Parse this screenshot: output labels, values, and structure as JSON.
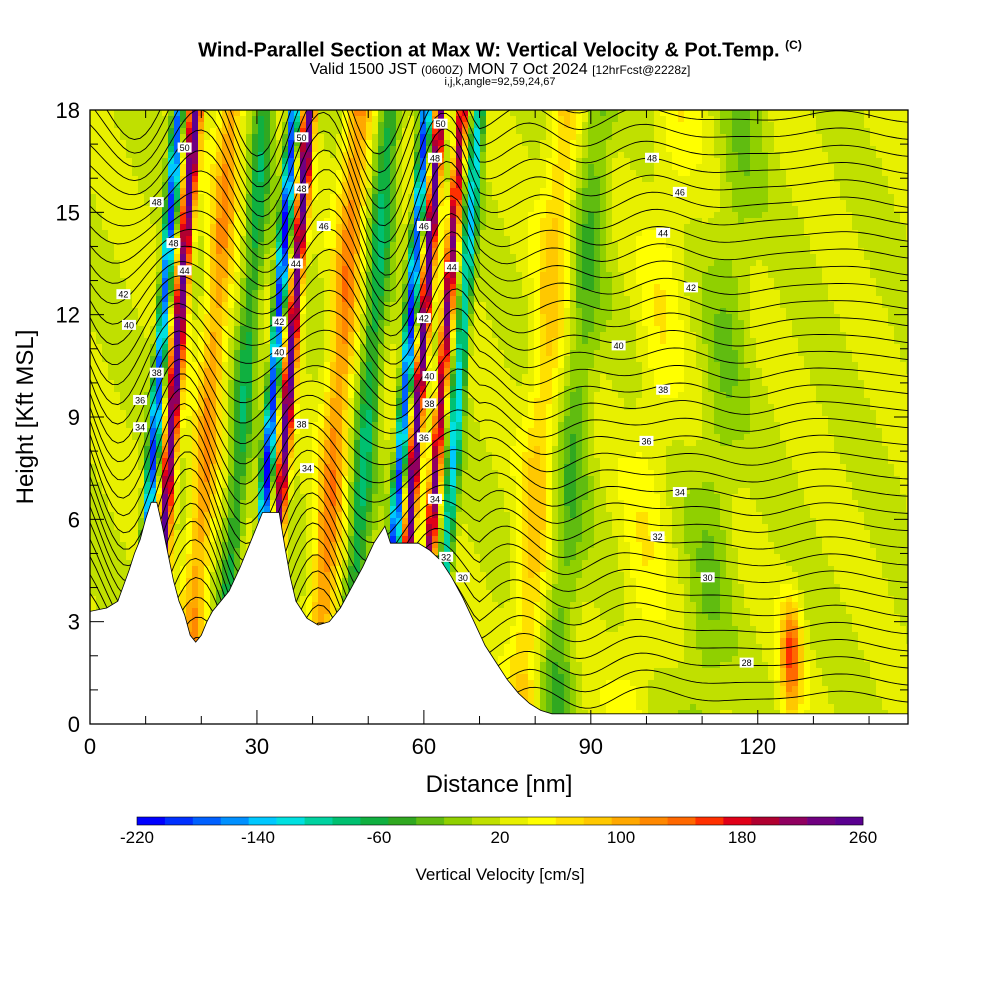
{
  "header": {
    "title": "Wind-Parallel Section at Max W: Vertical Velocity & Pot.Temp.",
    "title_suffix": "(C)",
    "valid_a": "Valid 1500 JST",
    "valid_b": "(0600Z)",
    "valid_c": "MON 7 Oct 2024",
    "valid_d": "[12hrFcst@2228z]",
    "params": "i,j,k,angle=92,59,24,67"
  },
  "chart_data": {
    "type": "heatmap",
    "xlabel": "Distance [nm]",
    "ylabel": "Height [Kft MSL]",
    "xlim": [
      0,
      147
    ],
    "ylim": [
      0,
      18
    ],
    "x_ticks": [
      "0",
      "30",
      "60",
      "90",
      "120"
    ],
    "x_tick_values": [
      0,
      30,
      60,
      90,
      120
    ],
    "y_ticks": [
      "0",
      "3",
      "6",
      "9",
      "12",
      "15",
      "18"
    ],
    "y_tick_values": [
      0,
      3,
      6,
      9,
      12,
      15,
      18
    ],
    "colorbar": {
      "label": "Vertical Velocity [cm/s]",
      "range": [
        -220,
        260
      ],
      "tick_labels": [
        "-220",
        "-140",
        "-60",
        "20",
        "100",
        "180",
        "260"
      ],
      "tick_values": [
        -220,
        -140,
        -60,
        20,
        100,
        180,
        260
      ],
      "colors": [
        "#0000ff",
        "#0030ff",
        "#0060ff",
        "#0090ff",
        "#00c8ff",
        "#00e0e0",
        "#00d2a0",
        "#00c070",
        "#10b040",
        "#30a820",
        "#60bc10",
        "#90d000",
        "#c0e000",
        "#e8f000",
        "#ffff00",
        "#ffe000",
        "#ffc800",
        "#ffa800",
        "#ff8800",
        "#ff6800",
        "#ff3000",
        "#e00018",
        "#b00030",
        "#900060",
        "#700080",
        "#5a0090"
      ]
    },
    "terrain": [
      [
        0,
        3.3
      ],
      [
        3,
        3.4
      ],
      [
        5,
        3.6
      ],
      [
        7,
        4.5
      ],
      [
        8,
        5
      ],
      [
        9,
        5.4
      ],
      [
        10,
        6
      ],
      [
        11,
        6.5
      ],
      [
        12,
        6.5
      ],
      [
        13,
        5.8
      ],
      [
        14,
        5
      ],
      [
        15,
        4.2
      ],
      [
        16,
        3.6
      ],
      [
        17,
        3.2
      ],
      [
        18,
        2.6
      ],
      [
        19,
        2.4
      ],
      [
        20,
        2.6
      ],
      [
        21,
        3.0
      ],
      [
        22,
        3.3
      ],
      [
        25,
        3.9
      ],
      [
        27,
        4.6
      ],
      [
        29,
        5.4
      ],
      [
        31,
        6.2
      ],
      [
        34,
        6.2
      ],
      [
        35,
        5.2
      ],
      [
        36,
        4.3
      ],
      [
        37,
        3.6
      ],
      [
        39,
        3.1
      ],
      [
        41,
        2.9
      ],
      [
        43,
        3.0
      ],
      [
        45,
        3.4
      ],
      [
        47,
        4.0
      ],
      [
        49,
        4.6
      ],
      [
        51,
        5.3
      ],
      [
        53,
        5.8
      ],
      [
        54,
        5.3
      ],
      [
        59,
        5.3
      ],
      [
        61,
        5.1
      ],
      [
        63,
        4.8
      ],
      [
        65,
        4.3
      ],
      [
        67,
        3.7
      ],
      [
        69,
        3.0
      ],
      [
        71,
        2.3
      ],
      [
        73,
        1.8
      ],
      [
        75,
        1.3
      ],
      [
        77,
        0.9
      ],
      [
        79,
        0.6
      ],
      [
        81,
        0.4
      ],
      [
        83,
        0.3
      ],
      [
        147,
        0.3
      ]
    ],
    "potential_temperature_contour_labels": [
      {
        "label": "28",
        "x": 118,
        "y": 1.8
      },
      {
        "label": "30",
        "x": 111,
        "y": 4.3
      },
      {
        "label": "30",
        "x": 67,
        "y": 4.3
      },
      {
        "label": "32",
        "x": 102,
        "y": 5.5
      },
      {
        "label": "32",
        "x": 64,
        "y": 4.9
      },
      {
        "label": "34",
        "x": 106,
        "y": 6.8
      },
      {
        "label": "34",
        "x": 62,
        "y": 6.6
      },
      {
        "label": "34",
        "x": 39,
        "y": 7.5
      },
      {
        "label": "34",
        "x": 9,
        "y": 8.7
      },
      {
        "label": "36",
        "x": 100,
        "y": 8.3
      },
      {
        "label": "36",
        "x": 60,
        "y": 8.4
      },
      {
        "label": "36",
        "x": 9,
        "y": 9.5
      },
      {
        "label": "38",
        "x": 103,
        "y": 9.8
      },
      {
        "label": "38",
        "x": 61,
        "y": 9.4
      },
      {
        "label": "38",
        "x": 38,
        "y": 8.8
      },
      {
        "label": "38",
        "x": 12,
        "y": 10.3
      },
      {
        "label": "40",
        "x": 95,
        "y": 11.1
      },
      {
        "label": "40",
        "x": 61,
        "y": 10.2
      },
      {
        "label": "40",
        "x": 34,
        "y": 10.9
      },
      {
        "label": "40",
        "x": 7,
        "y": 11.7
      },
      {
        "label": "42",
        "x": 108,
        "y": 12.8
      },
      {
        "label": "42",
        "x": 60,
        "y": 11.9
      },
      {
        "label": "42",
        "x": 34,
        "y": 11.8
      },
      {
        "label": "42",
        "x": 6,
        "y": 12.6
      },
      {
        "label": "44",
        "x": 103,
        "y": 14.4
      },
      {
        "label": "44",
        "x": 65,
        "y": 13.4
      },
      {
        "label": "44",
        "x": 37,
        "y": 13.5
      },
      {
        "label": "44",
        "x": 17,
        "y": 13.3
      },
      {
        "label": "46",
        "x": 106,
        "y": 15.6
      },
      {
        "label": "46",
        "x": 60,
        "y": 14.6
      },
      {
        "label": "46",
        "x": 42,
        "y": 14.6
      },
      {
        "label": "48",
        "x": 101,
        "y": 16.6
      },
      {
        "label": "48",
        "x": 62,
        "y": 16.6
      },
      {
        "label": "48",
        "x": 38,
        "y": 15.7
      },
      {
        "label": "48",
        "x": 15,
        "y": 14.1
      },
      {
        "label": "48",
        "x": 12,
        "y": 15.3
      },
      {
        "label": "50",
        "x": 63,
        "y": 17.6
      },
      {
        "label": "50",
        "x": 38,
        "y": 17.2
      },
      {
        "label": "50",
        "x": 17,
        "y": 16.9
      }
    ]
  }
}
